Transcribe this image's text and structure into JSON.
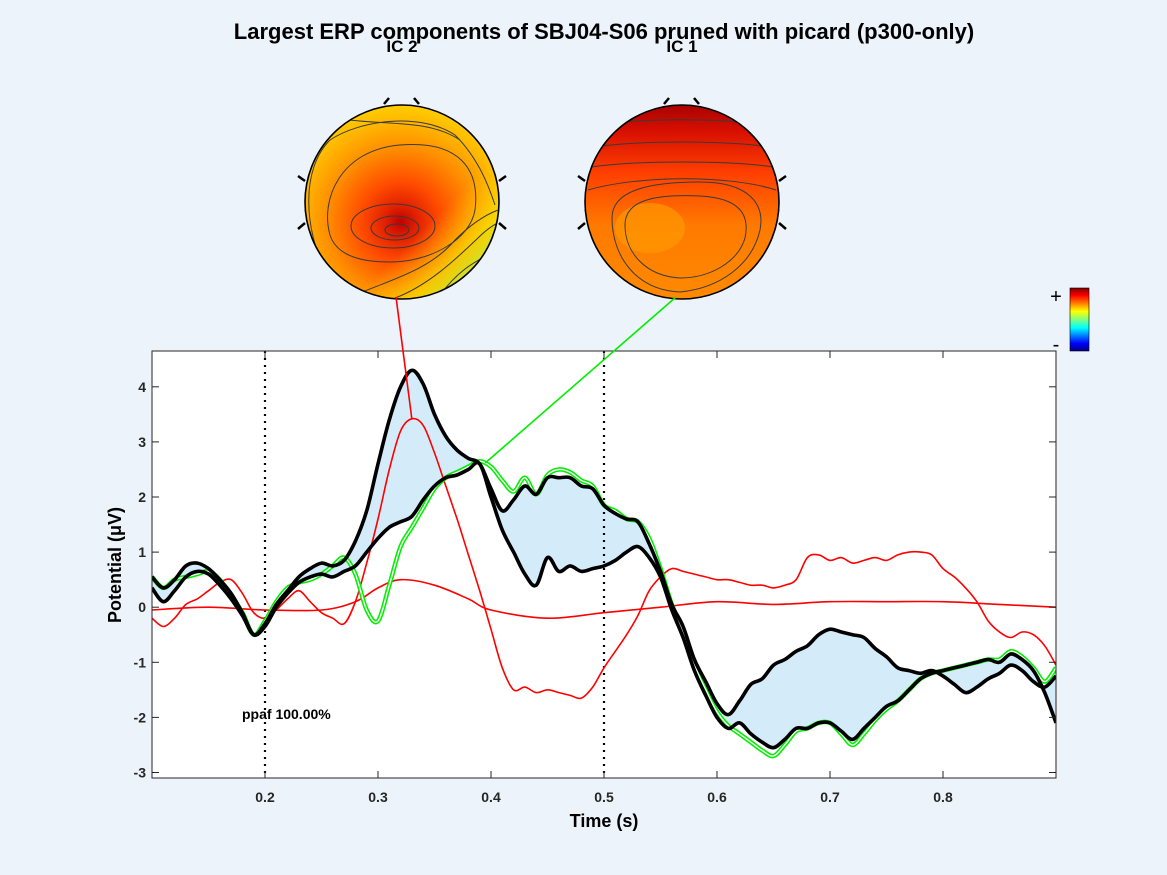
{
  "title": "Largest ERP components of SBJ04-S06 pruned with picard (p300-only)",
  "topomaps": [
    {
      "label": "IC 2",
      "color": "#ff0000",
      "latency": 0.33,
      "value": 3.41
    },
    {
      "label": "IC 1",
      "color": "#00ee00",
      "latency": 0.395,
      "value": 2.62
    }
  ],
  "colorbar": {
    "plus_label": "+",
    "minus_label": "-"
  },
  "annotation": "ppaf 100.00%",
  "chart_data": {
    "type": "line",
    "xlabel": "Time (s)",
    "ylabel": "Potential (μV)",
    "xlim": [
      0.1,
      0.9
    ],
    "ylim": [
      -3.1,
      4.65
    ],
    "xticks": [
      0.2,
      0.3,
      0.4,
      0.5,
      0.6,
      0.7,
      0.8
    ],
    "yticks": [
      4,
      3,
      2,
      1,
      0,
      -1,
      -2,
      -3
    ],
    "markers": [
      0.2,
      0.5
    ],
    "grid": false,
    "fill_color": "#d4ecfa",
    "series": [
      {
        "role": "envelope-upper",
        "color": "#000000",
        "x": [
          0.1,
          0.11,
          0.12,
          0.13,
          0.14,
          0.15,
          0.16,
          0.17,
          0.18,
          0.19,
          0.2,
          0.21,
          0.22,
          0.23,
          0.24,
          0.25,
          0.26,
          0.27,
          0.28,
          0.29,
          0.3,
          0.31,
          0.32,
          0.33,
          0.34,
          0.35,
          0.36,
          0.37,
          0.38,
          0.39,
          0.4,
          0.41,
          0.42,
          0.43,
          0.44,
          0.45,
          0.46,
          0.47,
          0.48,
          0.49,
          0.5,
          0.51,
          0.52,
          0.53,
          0.54,
          0.55,
          0.56,
          0.57,
          0.58,
          0.59,
          0.6,
          0.61,
          0.62,
          0.63,
          0.64,
          0.65,
          0.66,
          0.67,
          0.68,
          0.69,
          0.7,
          0.71,
          0.72,
          0.73,
          0.74,
          0.75,
          0.76,
          0.77,
          0.78,
          0.79,
          0.8,
          0.81,
          0.82,
          0.83,
          0.84,
          0.85,
          0.86,
          0.87,
          0.88,
          0.89,
          0.9
        ],
        "y": [
          0.55,
          0.35,
          0.5,
          0.75,
          0.8,
          0.7,
          0.5,
          0.25,
          -0.1,
          -0.5,
          -0.3,
          0.05,
          0.3,
          0.55,
          0.7,
          0.8,
          0.75,
          0.85,
          1.2,
          1.75,
          2.6,
          3.4,
          4.0,
          4.3,
          4.05,
          3.5,
          3.1,
          2.85,
          2.7,
          2.6,
          2.15,
          1.75,
          1.95,
          2.2,
          2.05,
          2.35,
          2.35,
          2.35,
          2.2,
          2.15,
          1.85,
          1.7,
          1.6,
          1.55,
          1.15,
          0.65,
          0.05,
          -0.35,
          -0.95,
          -1.35,
          -1.75,
          -1.95,
          -1.7,
          -1.4,
          -1.3,
          -1.05,
          -0.95,
          -0.8,
          -0.7,
          -0.5,
          -0.4,
          -0.45,
          -0.5,
          -0.55,
          -0.75,
          -0.9,
          -1.1,
          -1.15,
          -1.2,
          -1.15,
          -1.25,
          -1.4,
          -1.55,
          -1.45,
          -1.3,
          -1.2,
          -1.05,
          -1.15,
          -1.35,
          -1.45,
          -1.25
        ]
      },
      {
        "role": "envelope-lower",
        "color": "#000000",
        "x": [
          0.1,
          0.11,
          0.12,
          0.13,
          0.14,
          0.15,
          0.16,
          0.17,
          0.18,
          0.19,
          0.2,
          0.21,
          0.22,
          0.23,
          0.24,
          0.25,
          0.26,
          0.27,
          0.28,
          0.29,
          0.3,
          0.31,
          0.32,
          0.33,
          0.34,
          0.35,
          0.36,
          0.37,
          0.38,
          0.39,
          0.4,
          0.41,
          0.42,
          0.43,
          0.44,
          0.45,
          0.46,
          0.47,
          0.48,
          0.49,
          0.5,
          0.51,
          0.52,
          0.53,
          0.54,
          0.55,
          0.56,
          0.57,
          0.58,
          0.59,
          0.6,
          0.61,
          0.62,
          0.63,
          0.64,
          0.65,
          0.66,
          0.67,
          0.68,
          0.69,
          0.7,
          0.71,
          0.72,
          0.73,
          0.74,
          0.75,
          0.76,
          0.77,
          0.78,
          0.79,
          0.8,
          0.81,
          0.82,
          0.83,
          0.84,
          0.85,
          0.86,
          0.87,
          0.88,
          0.89,
          0.9
        ],
        "y": [
          0.35,
          0.1,
          0.3,
          0.55,
          0.65,
          0.6,
          0.4,
          0.15,
          -0.15,
          -0.5,
          -0.35,
          0.0,
          0.25,
          0.45,
          0.55,
          0.6,
          0.55,
          0.65,
          0.75,
          1.0,
          1.25,
          1.45,
          1.55,
          1.65,
          1.95,
          2.2,
          2.35,
          2.4,
          2.5,
          2.6,
          2.0,
          1.4,
          1.0,
          0.6,
          0.4,
          0.9,
          0.65,
          0.75,
          0.65,
          0.7,
          0.75,
          0.85,
          1.0,
          1.1,
          0.9,
          0.55,
          -0.05,
          -0.55,
          -1.15,
          -1.6,
          -2.0,
          -2.2,
          -2.1,
          -2.3,
          -2.45,
          -2.55,
          -2.4,
          -2.2,
          -2.2,
          -2.1,
          -2.1,
          -2.25,
          -2.4,
          -2.2,
          -2.0,
          -1.8,
          -1.7,
          -1.5,
          -1.3,
          -1.2,
          -1.15,
          -1.1,
          -1.05,
          -1.0,
          -0.95,
          -1.0,
          -0.85,
          -0.95,
          -1.15,
          -1.55,
          -2.1
        ]
      },
      {
        "role": "IC 1",
        "color": "#00ee00",
        "x": [
          0.1,
          0.11,
          0.12,
          0.13,
          0.14,
          0.15,
          0.16,
          0.17,
          0.18,
          0.19,
          0.2,
          0.21,
          0.22,
          0.23,
          0.24,
          0.25,
          0.26,
          0.27,
          0.28,
          0.29,
          0.3,
          0.31,
          0.32,
          0.33,
          0.34,
          0.35,
          0.36,
          0.37,
          0.38,
          0.39,
          0.4,
          0.41,
          0.42,
          0.43,
          0.44,
          0.45,
          0.46,
          0.47,
          0.48,
          0.49,
          0.5,
          0.51,
          0.52,
          0.53,
          0.54,
          0.55,
          0.56,
          0.57,
          0.58,
          0.59,
          0.6,
          0.61,
          0.62,
          0.63,
          0.64,
          0.65,
          0.66,
          0.67,
          0.68,
          0.69,
          0.7,
          0.71,
          0.72,
          0.73,
          0.74,
          0.75,
          0.76,
          0.77,
          0.78,
          0.79,
          0.8,
          0.81,
          0.82,
          0.83,
          0.84,
          0.85,
          0.86,
          0.87,
          0.88,
          0.89,
          0.9
        ],
        "y": [
          0.55,
          0.35,
          0.5,
          0.55,
          0.6,
          0.65,
          0.5,
          0.2,
          -0.1,
          -0.5,
          -0.25,
          0.1,
          0.35,
          0.45,
          0.5,
          0.6,
          0.75,
          0.9,
          0.6,
          -0.05,
          -0.25,
          0.4,
          1.1,
          1.45,
          1.8,
          2.15,
          2.35,
          2.45,
          2.55,
          2.65,
          2.55,
          2.3,
          2.1,
          2.35,
          2.05,
          2.4,
          2.5,
          2.45,
          2.3,
          2.2,
          1.85,
          1.75,
          1.6,
          1.55,
          1.25,
          0.7,
          0.05,
          -0.45,
          -1.05,
          -1.5,
          -1.9,
          -2.15,
          -2.3,
          -2.45,
          -2.6,
          -2.7,
          -2.5,
          -2.25,
          -2.2,
          -2.1,
          -2.1,
          -2.3,
          -2.5,
          -2.3,
          -2.05,
          -1.85,
          -1.7,
          -1.5,
          -1.3,
          -1.2,
          -1.15,
          -1.1,
          -1.05,
          -1.0,
          -0.95,
          -0.95,
          -0.8,
          -0.9,
          -1.1,
          -1.35,
          -1.1
        ]
      },
      {
        "role": "IC 2",
        "color": "#ff0000",
        "x": [
          0.1,
          0.11,
          0.12,
          0.13,
          0.14,
          0.15,
          0.16,
          0.17,
          0.18,
          0.19,
          0.2,
          0.21,
          0.22,
          0.23,
          0.24,
          0.25,
          0.26,
          0.27,
          0.28,
          0.29,
          0.3,
          0.31,
          0.32,
          0.33,
          0.34,
          0.35,
          0.36,
          0.37,
          0.38,
          0.39,
          0.4,
          0.41,
          0.42,
          0.43,
          0.44,
          0.45,
          0.46,
          0.47,
          0.48,
          0.49,
          0.5,
          0.51,
          0.52,
          0.53,
          0.54,
          0.55,
          0.56,
          0.57,
          0.58,
          0.59,
          0.6,
          0.61,
          0.62,
          0.63,
          0.64,
          0.65,
          0.66,
          0.67,
          0.68,
          0.69,
          0.7,
          0.71,
          0.72,
          0.73,
          0.74,
          0.75,
          0.76,
          0.77,
          0.78,
          0.79,
          0.8,
          0.81,
          0.82,
          0.83,
          0.84,
          0.85,
          0.86,
          0.87,
          0.88,
          0.89,
          0.9
        ],
        "y": [
          -0.2,
          -0.35,
          -0.2,
          0.05,
          0.15,
          0.3,
          0.45,
          0.5,
          0.25,
          -0.1,
          -0.2,
          -0.05,
          0.15,
          0.3,
          0.1,
          -0.1,
          -0.2,
          -0.3,
          0.1,
          0.8,
          1.6,
          2.5,
          3.2,
          3.42,
          3.3,
          2.8,
          2.2,
          1.6,
          0.95,
          0.3,
          -0.4,
          -1.1,
          -1.5,
          -1.45,
          -1.55,
          -1.5,
          -1.55,
          -1.6,
          -1.65,
          -1.45,
          -1.1,
          -0.8,
          -0.5,
          -0.15,
          0.3,
          0.55,
          0.7,
          0.65,
          0.6,
          0.55,
          0.5,
          0.5,
          0.45,
          0.4,
          0.4,
          0.35,
          0.4,
          0.5,
          0.9,
          0.95,
          0.85,
          0.9,
          0.8,
          0.85,
          0.9,
          0.85,
          0.95,
          1.0,
          1.0,
          0.95,
          0.7,
          0.55,
          0.35,
          0.1,
          -0.25,
          -0.45,
          -0.55,
          -0.45,
          -0.5,
          -0.7,
          -1.05
        ]
      },
      {
        "role": "other",
        "color": "#ff0000",
        "x": [
          0.1,
          0.15,
          0.2,
          0.25,
          0.28,
          0.3,
          0.32,
          0.35,
          0.38,
          0.4,
          0.45,
          0.5,
          0.55,
          0.6,
          0.65,
          0.7,
          0.75,
          0.8,
          0.85,
          0.9
        ],
        "y": [
          -0.05,
          0.0,
          -0.05,
          -0.05,
          0.1,
          0.35,
          0.5,
          0.4,
          0.15,
          -0.05,
          -0.2,
          -0.1,
          0.0,
          0.1,
          0.05,
          0.1,
          0.1,
          0.1,
          0.05,
          0.0
        ]
      }
    ]
  }
}
